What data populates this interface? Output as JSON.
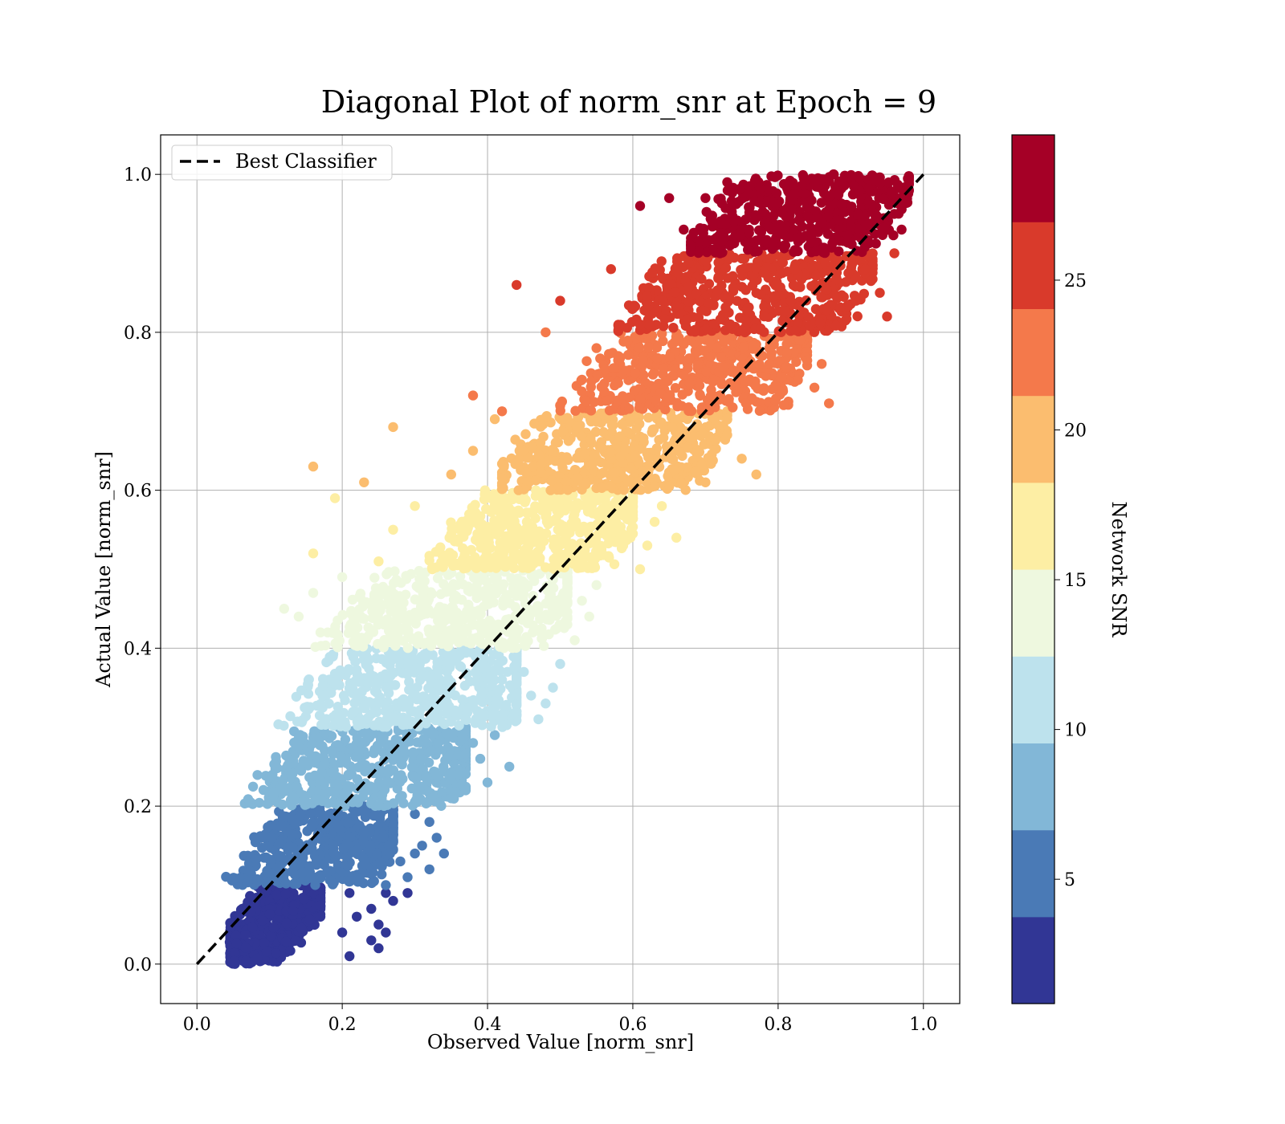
{
  "chart_data": {
    "type": "scatter",
    "title": "Diagonal Plot of norm_snr at Epoch = 9",
    "xlabel": "Observed Value [norm_snr]",
    "ylabel": "Actual Value [norm_snr]",
    "xlim": [
      -0.05,
      1.05
    ],
    "ylim": [
      -0.05,
      1.05
    ],
    "x_ticks": [
      "0.0",
      "0.2",
      "0.4",
      "0.6",
      "0.8",
      "1.0"
    ],
    "y_ticks": [
      "0.0",
      "0.2",
      "0.4",
      "0.6",
      "0.8",
      "1.0"
    ],
    "grid": true,
    "legend": {
      "placement": "upper-left",
      "entries": [
        {
          "label": "Best Classifier",
          "style": "black dashed line"
        }
      ]
    },
    "reference_line": {
      "x": [
        0.0,
        1.0
      ],
      "y": [
        0.0,
        1.0
      ],
      "color": "#000000",
      "dashed": true
    },
    "colorbar": {
      "label": "Network SNR",
      "ticks": [
        "5",
        "10",
        "15",
        "20",
        "25"
      ],
      "tick_values": [
        5,
        10,
        15,
        20,
        25
      ],
      "range": [
        0.85,
        29.85
      ],
      "colors": [
        "#313695",
        "#4a7ab6",
        "#82b7d7",
        "#bde2ed",
        "#eef8df",
        "#fdeea4",
        "#fbbd6f",
        "#f4794b",
        "#d93a2b",
        "#a50026"
      ]
    },
    "series": [
      {
        "band": [
          0.0,
          0.1
        ],
        "color": "#313695",
        "x_core": [
          0.04,
          0.17
        ],
        "center_x": 0.1,
        "outliers": [
          [
            0.17,
            0.06
          ],
          [
            0.2,
            0.04
          ],
          [
            0.21,
            0.09
          ],
          [
            0.22,
            0.06
          ],
          [
            0.24,
            0.07
          ],
          [
            0.25,
            0.05
          ],
          [
            0.26,
            0.09
          ],
          [
            0.24,
            0.03
          ],
          [
            0.21,
            0.01
          ],
          [
            0.25,
            0.02
          ],
          [
            0.27,
            0.08
          ],
          [
            0.29,
            0.09
          ],
          [
            0.26,
            0.04
          ]
        ]
      },
      {
        "band": [
          0.1,
          0.2
        ],
        "color": "#4a7ab6",
        "x_core": [
          0.04,
          0.27
        ],
        "center_x": 0.18,
        "outliers": [
          [
            0.28,
            0.13
          ],
          [
            0.29,
            0.11
          ],
          [
            0.3,
            0.14
          ],
          [
            0.31,
            0.15
          ],
          [
            0.32,
            0.12
          ],
          [
            0.32,
            0.18
          ],
          [
            0.33,
            0.16
          ],
          [
            0.34,
            0.14
          ],
          [
            0.3,
            0.19
          ],
          [
            0.26,
            0.1
          ]
        ]
      },
      {
        "band": [
          0.2,
          0.3
        ],
        "color": "#82b7d7",
        "x_core": [
          0.04,
          0.37
        ],
        "center_x": 0.25,
        "outliers": [
          [
            0.37,
            0.22
          ],
          [
            0.39,
            0.26
          ],
          [
            0.4,
            0.23
          ],
          [
            0.38,
            0.28
          ],
          [
            0.43,
            0.25
          ],
          [
            0.35,
            0.21
          ],
          [
            0.41,
            0.29
          ],
          [
            0.36,
            0.24
          ]
        ]
      },
      {
        "band": [
          0.3,
          0.4
        ],
        "color": "#bde2ed",
        "x_core": [
          0.07,
          0.44
        ],
        "center_x": 0.32,
        "outliers": [
          [
            0.46,
            0.34
          ],
          [
            0.47,
            0.31
          ],
          [
            0.45,
            0.37
          ],
          [
            0.5,
            0.38
          ],
          [
            0.49,
            0.35
          ],
          [
            0.44,
            0.32
          ],
          [
            0.42,
            0.36
          ],
          [
            0.48,
            0.33
          ]
        ]
      },
      {
        "band": [
          0.4,
          0.5
        ],
        "color": "#eef8df",
        "x_core": [
          0.15,
          0.51
        ],
        "center_x": 0.37,
        "outliers": [
          [
            0.54,
            0.44
          ],
          [
            0.55,
            0.48
          ],
          [
            0.52,
            0.41
          ],
          [
            0.16,
            0.47
          ],
          [
            0.14,
            0.44
          ],
          [
            0.2,
            0.49
          ],
          [
            0.53,
            0.46
          ],
          [
            0.51,
            0.43
          ],
          [
            0.18,
            0.42
          ],
          [
            0.12,
            0.45
          ]
        ]
      },
      {
        "band": [
          0.5,
          0.6
        ],
        "color": "#fdeea4",
        "x_core": [
          0.32,
          0.6
        ],
        "center_x": 0.48,
        "outliers": [
          [
            0.16,
            0.52
          ],
          [
            0.19,
            0.59
          ],
          [
            0.62,
            0.53
          ],
          [
            0.63,
            0.56
          ],
          [
            0.27,
            0.55
          ],
          [
            0.25,
            0.51
          ],
          [
            0.3,
            0.58
          ],
          [
            0.61,
            0.5
          ],
          [
            0.64,
            0.58
          ],
          [
            0.66,
            0.54
          ]
        ]
      },
      {
        "band": [
          0.6,
          0.7
        ],
        "color": "#fbbd6f",
        "x_core": [
          0.42,
          0.73
        ],
        "center_x": 0.58,
        "outliers": [
          [
            0.16,
            0.63
          ],
          [
            0.23,
            0.61
          ],
          [
            0.27,
            0.68
          ],
          [
            0.35,
            0.62
          ],
          [
            0.41,
            0.69
          ],
          [
            0.75,
            0.64
          ],
          [
            0.73,
            0.67
          ],
          [
            0.38,
            0.65
          ],
          [
            0.77,
            0.62
          ],
          [
            0.7,
            0.61
          ]
        ]
      },
      {
        "band": [
          0.7,
          0.8
        ],
        "color": "#f4794b",
        "x_core": [
          0.5,
          0.84
        ],
        "center_x": 0.69,
        "outliers": [
          [
            0.38,
            0.72
          ],
          [
            0.42,
            0.7
          ],
          [
            0.48,
            0.8
          ],
          [
            0.55,
            0.78
          ],
          [
            0.85,
            0.73
          ],
          [
            0.86,
            0.76
          ],
          [
            0.87,
            0.71
          ],
          [
            0.53,
            0.74
          ],
          [
            0.83,
            0.79
          ],
          [
            0.58,
            0.77
          ]
        ]
      },
      {
        "band": [
          0.8,
          0.9
        ],
        "color": "#d93a2b",
        "x_core": [
          0.58,
          0.93
        ],
        "center_x": 0.77,
        "outliers": [
          [
            0.44,
            0.86
          ],
          [
            0.5,
            0.84
          ],
          [
            0.57,
            0.88
          ],
          [
            0.6,
            0.83
          ],
          [
            0.95,
            0.82
          ],
          [
            0.92,
            0.88
          ],
          [
            0.94,
            0.85
          ],
          [
            0.64,
            0.87
          ],
          [
            0.61,
            0.81
          ],
          [
            0.96,
            0.9
          ]
        ]
      },
      {
        "band": [
          0.9,
          1.0
        ],
        "color": "#a50026",
        "x_core": [
          0.68,
          0.98
        ],
        "center_x": 0.84,
        "outliers": [
          [
            0.61,
            0.96
          ],
          [
            0.65,
            0.97
          ],
          [
            0.67,
            0.93
          ],
          [
            0.72,
            0.9
          ],
          [
            0.73,
            0.99
          ],
          [
            0.7,
            0.97
          ],
          [
            0.97,
            0.93
          ],
          [
            0.96,
            0.95
          ],
          [
            0.68,
            0.91
          ]
        ]
      }
    ]
  }
}
